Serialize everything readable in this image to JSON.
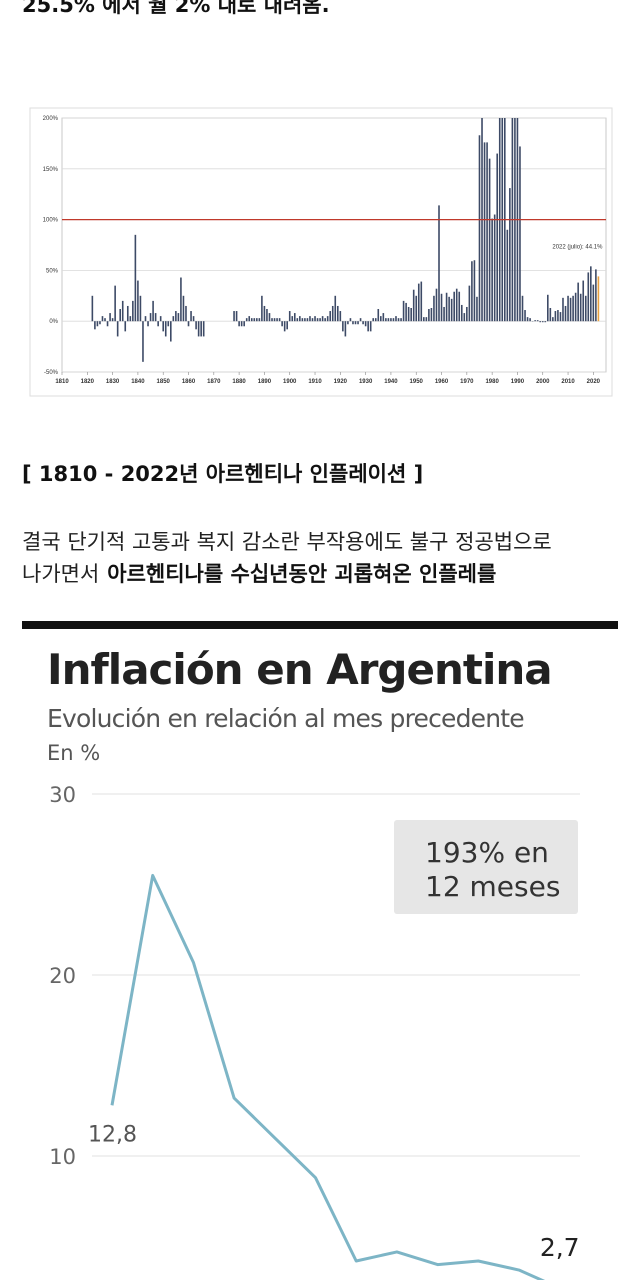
{
  "article": {
    "intro_tail": "25.5% 에서 월 2% 대로 내려옴.",
    "caption": "[ 1810 - 2022년 아르헨티나 인플레이션 ]",
    "paragraph_line1": "결국 단기적 고통과 복지 감소란 부작용에도 불구 정공법으로",
    "paragraph_line2_plain": "나가면서",
    "paragraph_line2_bold": "아르헨티나를 수십년동안 괴롭혀온 인플레를"
  },
  "chart_data": [
    {
      "type": "bar",
      "x": [
        1822,
        1823,
        1824,
        1825,
        1826,
        1827,
        1828,
        1829,
        1830,
        1831,
        1832,
        1833,
        1834,
        1835,
        1836,
        1837,
        1838,
        1839,
        1840,
        1841,
        1842,
        1843,
        1844,
        1845,
        1846,
        1847,
        1848,
        1849,
        1850,
        1851,
        1852,
        1853,
        1854,
        1855,
        1856,
        1857,
        1858,
        1859,
        1860,
        1861,
        1862,
        1863,
        1864,
        1865,
        1866,
        1878,
        1879,
        1880,
        1881,
        1882,
        1883,
        1884,
        1885,
        1886,
        1887,
        1888,
        1889,
        1890,
        1891,
        1892,
        1893,
        1894,
        1895,
        1896,
        1897,
        1898,
        1899,
        1900,
        1901,
        1902,
        1903,
        1904,
        1905,
        1906,
        1907,
        1908,
        1909,
        1910,
        1911,
        1912,
        1913,
        1914,
        1915,
        1916,
        1917,
        1918,
        1919,
        1920,
        1921,
        1922,
        1923,
        1924,
        1925,
        1926,
        1927,
        1928,
        1929,
        1930,
        1931,
        1932,
        1933,
        1934,
        1935,
        1936,
        1937,
        1938,
        1939,
        1940,
        1941,
        1942,
        1943,
        1944,
        1945,
        1946,
        1947,
        1948,
        1949,
        1950,
        1951,
        1952,
        1953,
        1954,
        1955,
        1956,
        1957,
        1958,
        1959,
        1960,
        1961,
        1962,
        1963,
        1964,
        1965,
        1966,
        1967,
        1968,
        1969,
        1970,
        1971,
        1972,
        1973,
        1974,
        1975,
        1976,
        1977,
        1978,
        1979,
        1980,
        1981,
        1982,
        1983,
        1984,
        1985,
        1986,
        1987,
        1988,
        1989,
        1990,
        1991,
        1992,
        1993,
        1994,
        1995,
        1996,
        1997,
        1998,
        1999,
        2000,
        2001,
        2002,
        2003,
        2004,
        2005,
        2006,
        2007,
        2008,
        2009,
        2010,
        2011,
        2012,
        2013,
        2014,
        2015,
        2016,
        2017,
        2018,
        2019,
        2020,
        2021,
        2022
      ],
      "values": [
        25,
        -8,
        -5,
        -3,
        5,
        3,
        -5,
        8,
        3,
        35,
        -15,
        12,
        20,
        -10,
        15,
        5,
        20,
        85,
        40,
        25,
        -40,
        5,
        -5,
        8,
        20,
        8,
        -5,
        5,
        -10,
        -15,
        -5,
        -20,
        5,
        10,
        8,
        43,
        25,
        15,
        -5,
        10,
        5,
        -8,
        -15,
        -15,
        -15,
        10,
        10,
        -5,
        -5,
        -5,
        3,
        5,
        3,
        3,
        3,
        3,
        25,
        15,
        12,
        8,
        3,
        3,
        3,
        3,
        -5,
        -10,
        -8,
        10,
        5,
        8,
        3,
        5,
        3,
        3,
        3,
        5,
        3,
        5,
        3,
        3,
        5,
        3,
        5,
        10,
        15,
        25,
        15,
        10,
        -10,
        -15,
        -3,
        3,
        -3,
        -3,
        -3,
        3,
        -3,
        -5,
        -10,
        -10,
        3,
        3,
        12,
        5,
        8,
        3,
        3,
        3,
        3,
        5,
        3,
        3,
        20,
        18,
        14,
        13,
        31,
        25,
        37,
        39,
        4,
        4,
        12,
        13,
        25,
        32,
        114,
        27,
        14,
        28,
        24,
        22,
        29,
        32,
        29,
        16,
        8,
        14,
        35,
        59,
        60,
        24,
        183,
        200,
        176,
        176,
        160,
        101,
        105,
        165,
        200,
        200,
        200,
        90,
        131,
        200,
        200,
        200,
        172,
        25,
        11,
        4,
        3,
        0,
        1,
        1,
        -1,
        -1,
        -1,
        26,
        13,
        4,
        10,
        11,
        9,
        23,
        15,
        25,
        23,
        25,
        28,
        38,
        27,
        40,
        25,
        48,
        54,
        36,
        51,
        44.1
      ],
      "color": "#3d4a66",
      "last_bar_color": "#e8a040",
      "xlim": [
        1810,
        2025
      ],
      "ylim": [
        -50,
        200
      ],
      "xticks": [
        1810,
        1820,
        1830,
        1840,
        1850,
        1860,
        1870,
        1880,
        1890,
        1900,
        1910,
        1920,
        1930,
        1940,
        1950,
        1960,
        1970,
        1980,
        1990,
        2000,
        2010,
        2020
      ],
      "yticks": [
        {
          "value": -50,
          "label": "-50%"
        },
        {
          "value": 0,
          "label": "0%"
        },
        {
          "value": 50,
          "label": "50%"
        },
        {
          "value": 100,
          "label": "100%"
        },
        {
          "value": 150,
          "label": "150%"
        },
        {
          "value": 200,
          "label": "200%"
        }
      ],
      "grid": true,
      "reference_line": {
        "value": 100,
        "color": "#c0392b"
      },
      "annotation": "2022 (julio): 44.1%"
    },
    {
      "type": "line",
      "title": "Inflación en Argentina",
      "subtitle": "Evolución en relación al mes precedente",
      "y_label": "En %",
      "annotation": [
        "193% en",
        "12 meses"
      ],
      "categories": [
        null,
        null,
        null,
        null,
        null,
        null,
        null,
        null,
        null,
        null,
        null,
        null
      ],
      "values": [
        12.8,
        25.5,
        20.7,
        13.2,
        11.0,
        8.8,
        4.2,
        4.7,
        4.0,
        4.2,
        3.7,
        2.7
      ],
      "value_labels": [
        "12,8",
        null,
        null,
        null,
        null,
        null,
        null,
        null,
        null,
        null,
        null,
        "2,7"
      ],
      "color": "#7db5c6",
      "ylim": [
        0,
        30
      ],
      "yticks": [
        10,
        20,
        30
      ],
      "grid": true
    }
  ]
}
